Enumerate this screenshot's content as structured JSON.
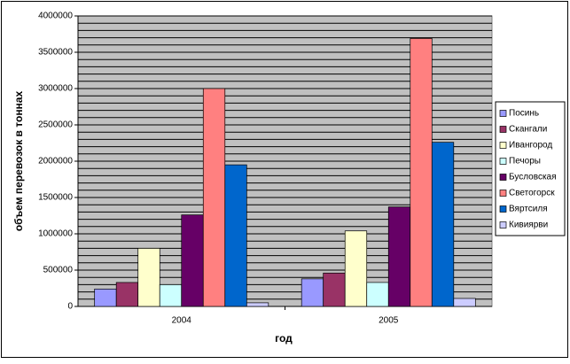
{
  "chart_data": {
    "type": "bar",
    "categories": [
      "2004",
      "2005"
    ],
    "x_label": "год",
    "y_label": "объем перевозок в тоннах",
    "series": [
      {
        "name": "Посинь",
        "color": "#9999ff",
        "values": [
          240000,
          380000
        ]
      },
      {
        "name": "Скангали",
        "color": "#993366",
        "values": [
          330000,
          460000
        ]
      },
      {
        "name": "Ивангород",
        "color": "#ffffcc",
        "values": [
          800000,
          1040000
        ]
      },
      {
        "name": "Печоры",
        "color": "#ccffff",
        "values": [
          300000,
          330000
        ]
      },
      {
        "name": "Бусловская",
        "color": "#660066",
        "values": [
          1260000,
          1370000
        ]
      },
      {
        "name": "Светогорск",
        "color": "#ff8080",
        "values": [
          3000000,
          3690000
        ]
      },
      {
        "name": "Вяртсиля",
        "color": "#0066cc",
        "values": [
          1950000,
          2260000
        ]
      },
      {
        "name": "Кивиярви",
        "color": "#ccccff",
        "values": [
          50000,
          110000
        ]
      }
    ],
    "ylim": [
      0,
      4000000
    ],
    "yticks": [
      0,
      500000,
      1000000,
      1500000,
      2000000,
      2500000,
      3000000,
      3500000,
      4000000
    ],
    "grid": true,
    "grid_minor_divisions": 5,
    "plot_background": "#c0c0c0",
    "legend": "right"
  }
}
